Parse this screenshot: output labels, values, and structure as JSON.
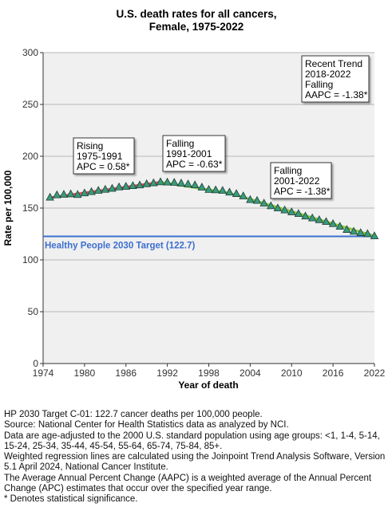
{
  "chart_data": {
    "type": "scatter",
    "title_line1": "U.S. death rates for all cancers,",
    "title_line2": "Female,  1975-2022",
    "xlabel": "Year of death",
    "ylabel": "Rate per 100,000",
    "xlim": [
      1974,
      2022
    ],
    "ylim": [
      0,
      300
    ],
    "xticks": [
      1974,
      1980,
      1986,
      1992,
      1998,
      2004,
      2010,
      2016,
      2022
    ],
    "yticks": [
      0,
      50,
      100,
      150,
      200,
      250,
      300
    ],
    "grid": true,
    "target": {
      "value": 122.7,
      "label": "Healthy People 2030 Target (122.7)",
      "color": "#3c6fcf"
    },
    "observed": {
      "x": [
        1975,
        1976,
        1977,
        1978,
        1979,
        1980,
        1981,
        1982,
        1983,
        1984,
        1985,
        1986,
        1987,
        1988,
        1989,
        1990,
        1991,
        1992,
        1993,
        1994,
        1995,
        1996,
        1997,
        1998,
        1999,
        2000,
        2001,
        2002,
        2003,
        2004,
        2005,
        2006,
        2007,
        2008,
        2009,
        2010,
        2011,
        2012,
        2013,
        2014,
        2015,
        2016,
        2017,
        2018,
        2019,
        2020,
        2021,
        2022
      ],
      "y": [
        160.3,
        162.6,
        163.1,
        163.5,
        162.9,
        164.4,
        165.7,
        166.9,
        167.9,
        168.9,
        170.2,
        170.8,
        171.5,
        172.1,
        173.3,
        174.2,
        175.1,
        174.9,
        174.6,
        174.0,
        173.1,
        172.2,
        170.0,
        167.8,
        167.4,
        166.9,
        165.2,
        163.8,
        161.6,
        158.0,
        157.2,
        154.6,
        152.0,
        149.9,
        148.0,
        146.2,
        144.5,
        142.1,
        140.3,
        138.6,
        136.8,
        134.8,
        132.2,
        129.2,
        127.4,
        126.1,
        125.1,
        123.0
      ],
      "marker_color": "#3a9a7e"
    },
    "trend_segments": [
      {
        "x": [
          1975,
          1991
        ],
        "y": [
          160.0,
          175.0
        ],
        "color": "#e05050"
      },
      {
        "x": [
          1991,
          2001
        ],
        "y": [
          175.0,
          164.5
        ],
        "color": "#8cc83c"
      },
      {
        "x": [
          2001,
          2022
        ],
        "y": [
          164.5,
          123.0
        ],
        "color": "#8cc83c"
      }
    ],
    "annotations": [
      {
        "lines": [
          "Rising",
          "1975-1991",
          "APC =  0.58*"
        ]
      },
      {
        "lines": [
          "Falling",
          "1991-2001",
          "APC = -0.63*"
        ]
      },
      {
        "lines": [
          "Falling",
          "2001-2022",
          "APC = -1.38*"
        ]
      },
      {
        "lines": [
          "Recent Trend",
          "2018-2022",
          "Falling",
          "AAPC = -1.38*"
        ]
      }
    ]
  },
  "footnotes": [
    "HP 2030 Target C-01: 122.7 cancer deaths per 100,000 people.",
    "Source: National Center for Health Statistics data as analyzed by NCI.",
    "Data are age-adjusted to the 2000 U.S. standard population using age groups: <1, 1-4, 5-14, 15-24, 25-34, 35-44, 45-54, 55-64, 65-74, 75-84, 85+.",
    "Weighted regression lines are calculated using the Joinpoint Trend Analysis Software, Version 5.1 April 2024, National Cancer Institute.",
    "The Average Annual Percent Change (AAPC) is a weighted average of the Annual Percent Change (APC) estimates that occur over the specified year range.",
    "* Denotes statistical significance."
  ]
}
